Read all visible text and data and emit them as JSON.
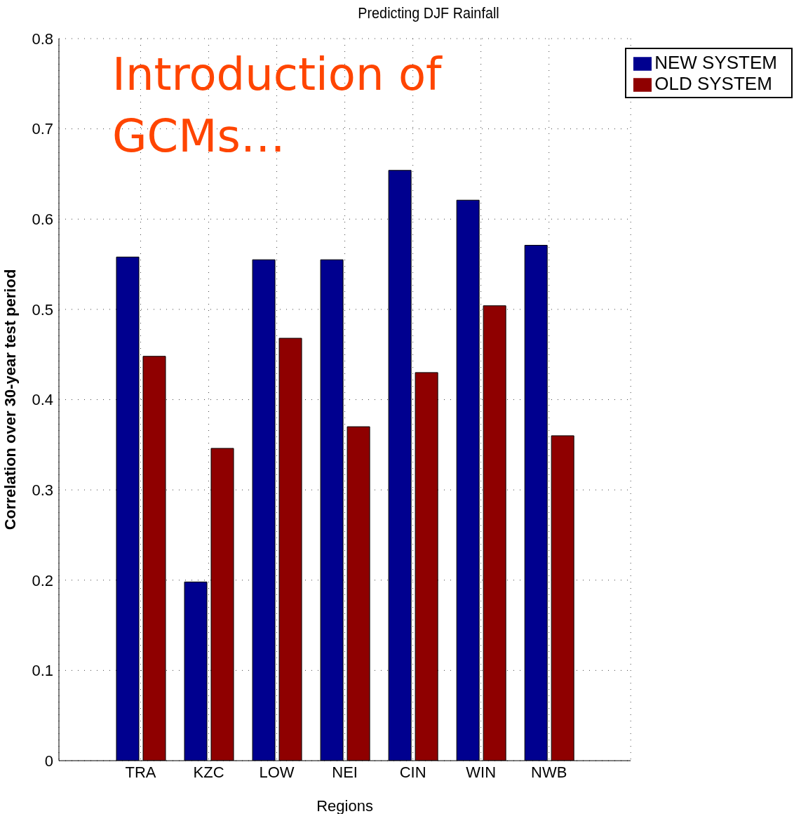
{
  "chart_data": {
    "type": "bar",
    "title": "Predicting DJF Rainfall",
    "xlabel": "Regions",
    "ylabel": "Correlation over 30-year test period",
    "annotations": [
      "Introduction of GCMs…"
    ],
    "categories": [
      "TRA",
      "KZC",
      "LOW",
      "NEI",
      "CIN",
      "WIN",
      "NWB"
    ],
    "series": [
      {
        "name": "NEW SYSTEM",
        "color": "#00008f",
        "values": [
          0.558,
          0.198,
          0.555,
          0.555,
          0.654,
          0.621,
          0.571
        ]
      },
      {
        "name": "OLD SYSTEM",
        "color": "#8f0000",
        "values": [
          0.448,
          0.346,
          0.468,
          0.37,
          0.43,
          0.504,
          0.36
        ]
      }
    ],
    "ylim": [
      0,
      0.8
    ],
    "yticks": [
      0,
      0.1,
      0.2,
      0.3,
      0.4,
      0.5,
      0.6,
      0.7,
      0.8
    ],
    "grid": true,
    "legend": "top right"
  }
}
